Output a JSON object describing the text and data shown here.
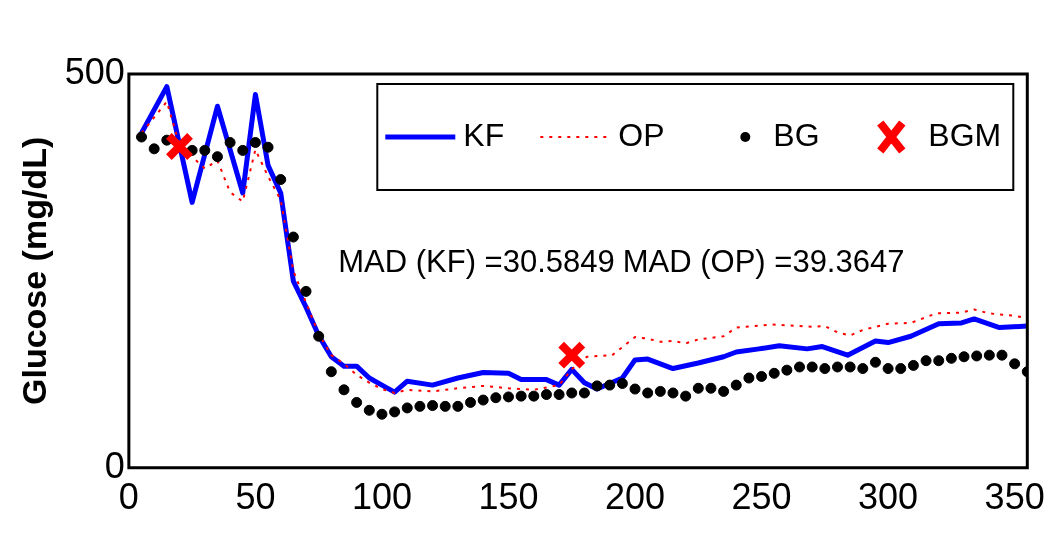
{
  "chart_data": {
    "type": "line",
    "ylabel": "Glucose (mg/dL)",
    "xlim": [
      0,
      355
    ],
    "xticks": [
      0,
      50,
      100,
      150,
      200,
      250,
      300,
      350
    ],
    "ylim": [
      0,
      500
    ],
    "yticks": [
      0,
      500
    ],
    "grid": false,
    "legend": "top right",
    "annotations": [
      "MAD (KF) =30.5849",
      "MAD (OP) =39.3647"
    ],
    "series": [
      {
        "name": "KF",
        "type": "line",
        "color": "#0000ff",
        "line_style": "solid",
        "marker": "none",
        "x": [
          5,
          15,
          25,
          35,
          45,
          50,
          55,
          60,
          65,
          70,
          75,
          80,
          85,
          90,
          95,
          100,
          105,
          110,
          120,
          130,
          140,
          150,
          155,
          165,
          170,
          175,
          180,
          185,
          195,
          200,
          205,
          215,
          225,
          235,
          240,
          249,
          257,
          268,
          274,
          284,
          295,
          300,
          309,
          320,
          329,
          334,
          344,
          355
        ],
        "values": [
          425,
          484,
          337,
          459,
          349,
          474,
          384,
          349,
          237,
          204,
          168,
          141,
          129,
          129,
          114,
          105,
          96,
          110,
          105,
          114,
          121,
          120,
          112,
          112,
          105,
          125,
          108,
          100,
          114,
          137,
          138,
          126,
          133,
          141,
          147,
          151,
          155,
          151,
          154,
          143,
          161,
          159,
          167,
          183,
          184,
          189,
          178,
          180
        ]
      },
      {
        "name": "OP",
        "type": "line",
        "color": "#ff0000",
        "line_style": "dotted",
        "marker": "none",
        "x": [
          5,
          15,
          20,
          25,
          30,
          35,
          40,
          45,
          50,
          55,
          60,
          65,
          70,
          75,
          80,
          85,
          90,
          95,
          100,
          105,
          110,
          120,
          130,
          140,
          150,
          160,
          170,
          175,
          181,
          191,
          200,
          205,
          210,
          215,
          220,
          225,
          235,
          240,
          254,
          270,
          275,
          280,
          285,
          290,
          300,
          309,
          319,
          329,
          334,
          340,
          350,
          355
        ],
        "values": [
          425,
          465,
          410,
          395,
          380,
          390,
          350,
          338,
          404,
          370,
          340,
          250,
          210,
          170,
          143,
          132,
          118,
          108,
          100,
          95,
          99,
          97,
          101,
          104,
          101,
          99,
          105,
          125,
          141,
          143,
          166,
          164,
          160,
          161,
          158,
          163,
          167,
          178,
          182,
          179,
          180,
          172,
          168,
          175,
          183,
          184,
          196,
          197,
          201,
          196,
          193,
          190
        ]
      },
      {
        "name": "BG",
        "type": "scatter",
        "color": "#000000",
        "marker": "circle",
        "x": [
          5,
          10,
          15,
          25,
          30,
          35,
          40,
          45,
          50,
          55,
          60,
          65,
          70,
          75,
          80,
          85,
          90,
          95,
          100,
          105,
          110,
          115,
          120,
          125,
          130,
          135,
          140,
          145,
          150,
          155,
          160,
          165,
          170,
          175,
          180,
          185,
          190,
          195,
          200,
          205,
          210,
          215,
          220,
          225,
          230,
          235,
          240,
          245,
          250,
          255,
          260,
          265,
          270,
          275,
          280,
          285,
          290,
          295,
          300,
          305,
          310,
          315,
          320,
          325,
          330,
          335,
          340,
          345,
          350,
          355
        ],
        "values": [
          420,
          405,
          416,
          403,
          403,
          395,
          413,
          403,
          413,
          407,
          366,
          293,
          224,
          167,
          122,
          99,
          83,
          73,
          68,
          71,
          76,
          78,
          79,
          78,
          78,
          83,
          86,
          89,
          90,
          91,
          91,
          93,
          93,
          95,
          95,
          104,
          105,
          107,
          100,
          95,
          97,
          95,
          91,
          101,
          101,
          97,
          105,
          114,
          116,
          120,
          124,
          128,
          128,
          126,
          128,
          128,
          126,
          134,
          126,
          126,
          130,
          136,
          136,
          139,
          141,
          142,
          143,
          143,
          132,
          122
        ]
      },
      {
        "name": "BGM",
        "type": "scatter",
        "color": "#ff0000",
        "marker": "cross",
        "x": [
          20,
          175
        ],
        "values": [
          408,
          143
        ]
      }
    ]
  }
}
